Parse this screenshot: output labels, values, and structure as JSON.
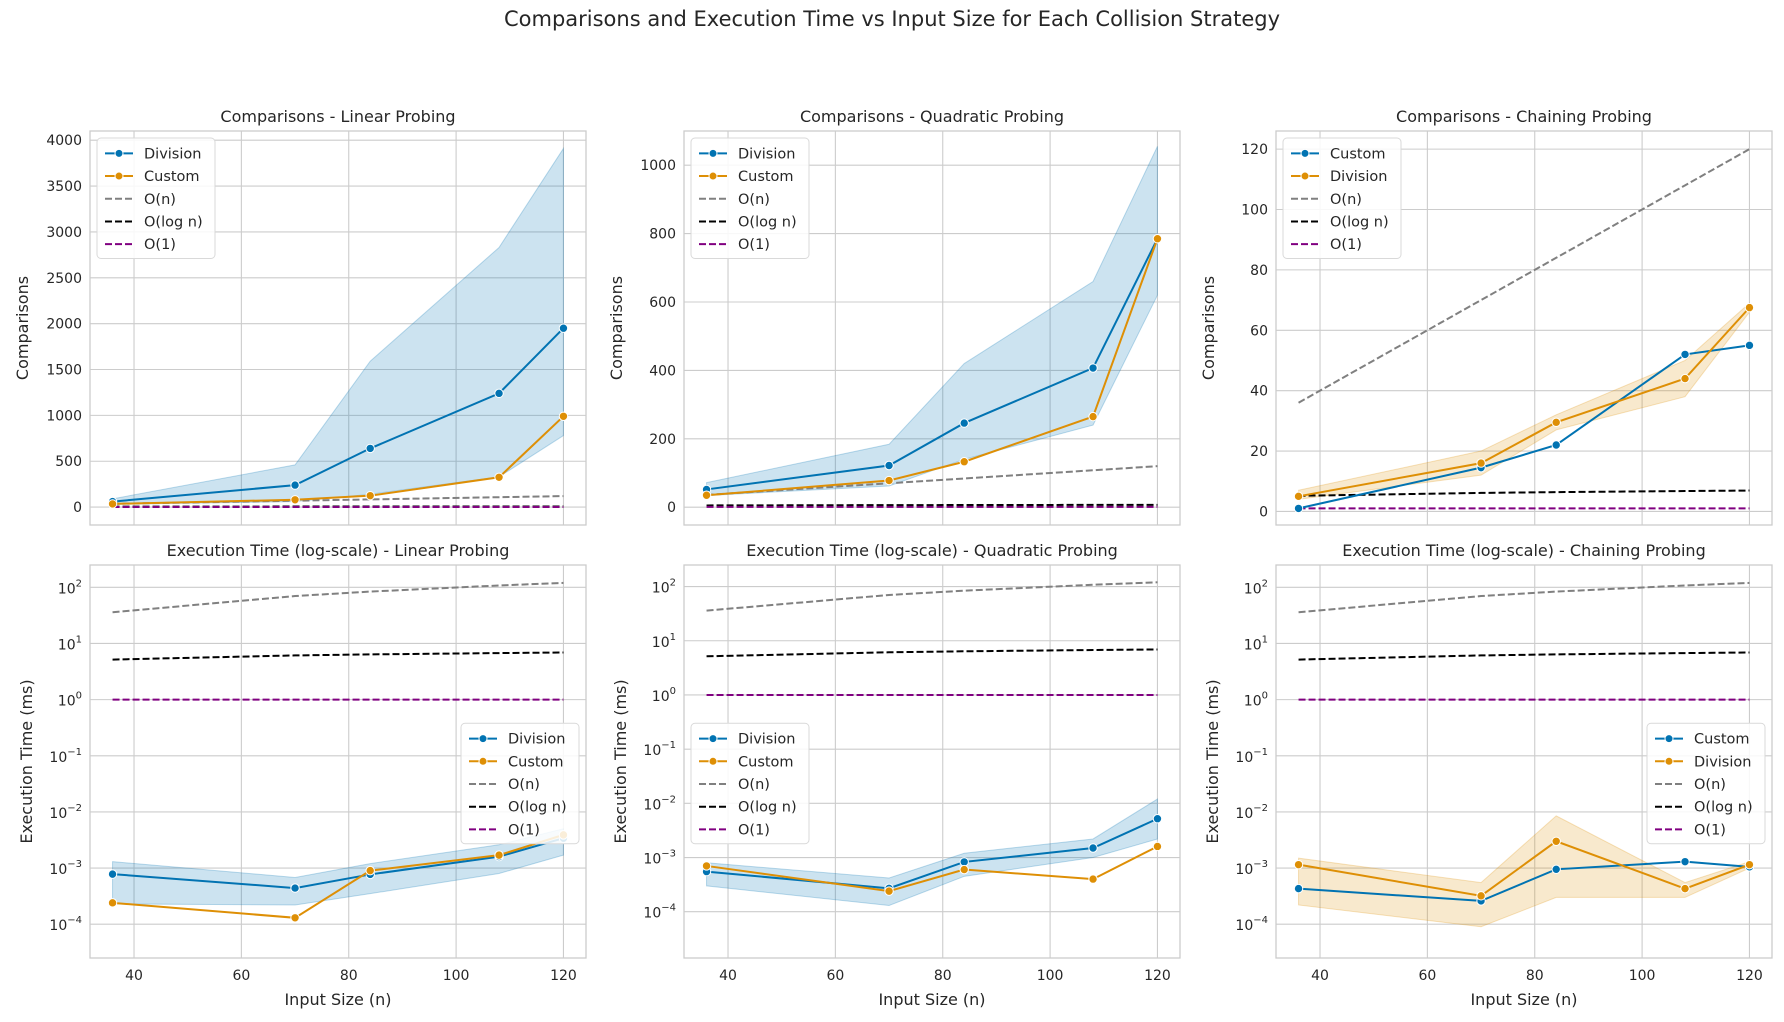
{
  "figure": {
    "suptitle": "Comparisons and Execution Time vs Input Size for Each Collision Strategy"
  },
  "colors": {
    "blue": "#0173b2",
    "orange": "#de8f05",
    "gray": "#808080",
    "black": "#000000",
    "purple": "#800080"
  },
  "chart_data": [
    {
      "id": "cmp-linear",
      "type": "line",
      "title": "Comparisons - Linear Probing",
      "xlabel": "",
      "ylabel": "Comparisons",
      "xlim": [
        31.8,
        124.2
      ],
      "ylim": [
        -195,
        4100
      ],
      "xticks": [
        40,
        60,
        80,
        100,
        120
      ],
      "show_xtick_labels": false,
      "yticks": [
        0,
        500,
        1000,
        1500,
        2000,
        2500,
        3000,
        3500,
        4000
      ],
      "ytick_labels": [
        "0",
        "500",
        "1000",
        "1500",
        "2000",
        "2500",
        "3000",
        "3500",
        "4000"
      ],
      "yscale": "linear",
      "legend_loc": "upper-left",
      "grid": true,
      "x": [
        36,
        70,
        84,
        108,
        120
      ],
      "series": [
        {
          "name": "Division",
          "color": "blue",
          "marker": true,
          "y": [
            60,
            240,
            640,
            1240,
            1950
          ],
          "ci_low": [
            30,
            60,
            140,
            330,
            780
          ],
          "ci_high": [
            90,
            460,
            1590,
            2830,
            3910
          ]
        },
        {
          "name": "Custom",
          "color": "orange",
          "marker": true,
          "y": [
            35,
            80,
            125,
            325,
            990
          ]
        },
        {
          "name": "O(n)",
          "color": "gray",
          "dash": true,
          "y": [
            36,
            70,
            84,
            108,
            120
          ]
        },
        {
          "name": "O(log n)",
          "color": "black",
          "dash": true,
          "y": [
            5.17,
            6.13,
            6.39,
            6.75,
            6.91
          ]
        },
        {
          "name": "O(1)",
          "color": "purple",
          "dash": true,
          "y": [
            1,
            1,
            1,
            1,
            1
          ]
        }
      ]
    },
    {
      "id": "cmp-quadratic",
      "type": "line",
      "title": "Comparisons - Quadratic Probing",
      "xlabel": "",
      "ylabel": "Comparisons",
      "xlim": [
        31.8,
        124.2
      ],
      "ylim": [
        -52,
        1100
      ],
      "xticks": [
        40,
        60,
        80,
        100,
        120
      ],
      "show_xtick_labels": false,
      "yticks": [
        0,
        200,
        400,
        600,
        800,
        1000
      ],
      "ytick_labels": [
        "0",
        "200",
        "400",
        "600",
        "800",
        "1000"
      ],
      "yscale": "linear",
      "legend_loc": "upper-left",
      "grid": true,
      "x": [
        36,
        70,
        84,
        108,
        120
      ],
      "series": [
        {
          "name": "Division",
          "color": "blue",
          "marker": true,
          "y": [
            52,
            122,
            246,
            407,
            785
          ],
          "ci_low": [
            34,
            62,
            140,
            240,
            620
          ],
          "ci_high": [
            72,
            184,
            420,
            660,
            1055
          ]
        },
        {
          "name": "Custom",
          "color": "orange",
          "marker": true,
          "y": [
            35,
            78,
            133,
            265,
            785
          ]
        },
        {
          "name": "O(n)",
          "color": "gray",
          "dash": true,
          "y": [
            36,
            70,
            84,
            108,
            120
          ]
        },
        {
          "name": "O(log n)",
          "color": "black",
          "dash": true,
          "y": [
            5.17,
            6.13,
            6.39,
            6.75,
            6.91
          ]
        },
        {
          "name": "O(1)",
          "color": "purple",
          "dash": true,
          "y": [
            1,
            1,
            1,
            1,
            1
          ]
        }
      ]
    },
    {
      "id": "cmp-chaining",
      "type": "line",
      "title": "Comparisons - Chaining Probing",
      "xlabel": "",
      "ylabel": "Comparisons",
      "xlim": [
        31.8,
        124.2
      ],
      "ylim": [
        -4.5,
        126
      ],
      "xticks": [
        40,
        60,
        80,
        100,
        120
      ],
      "show_xtick_labels": false,
      "yticks": [
        0,
        20,
        40,
        60,
        80,
        100,
        120
      ],
      "ytick_labels": [
        "0",
        "20",
        "40",
        "60",
        "80",
        "100",
        "120"
      ],
      "yscale": "linear",
      "legend_loc": "upper-left",
      "grid": true,
      "x": [
        36,
        70,
        84,
        108,
        120
      ],
      "series": [
        {
          "name": "Custom",
          "color": "blue",
          "marker": true,
          "y": [
            1,
            14.5,
            22,
            52,
            55
          ]
        },
        {
          "name": "Division",
          "color": "orange",
          "marker": true,
          "y": [
            5,
            16,
            29.5,
            44,
            67.5
          ],
          "ci_low": [
            4,
            12,
            27,
            38,
            66
          ],
          "ci_high": [
            7,
            20,
            32,
            50,
            69
          ]
        },
        {
          "name": "O(n)",
          "color": "gray",
          "dash": true,
          "y": [
            36,
            70,
            84,
            108,
            120
          ]
        },
        {
          "name": "O(log n)",
          "color": "black",
          "dash": true,
          "y": [
            5.17,
            6.13,
            6.39,
            6.75,
            6.91
          ]
        },
        {
          "name": "O(1)",
          "color": "purple",
          "dash": true,
          "y": [
            1,
            1,
            1,
            1,
            1
          ]
        }
      ]
    },
    {
      "id": "time-linear",
      "type": "line",
      "title": "Execution Time (log-scale) - Linear Probing",
      "xlabel": "Input Size (n)",
      "ylabel": "Execution Time (ms)",
      "xlim": [
        31.8,
        124.2
      ],
      "ylim": [
        2.5e-05,
        250
      ],
      "xticks": [
        40,
        60,
        80,
        100,
        120
      ],
      "show_xtick_labels": true,
      "yticks": [
        0.0001,
        0.001,
        0.01,
        0.1,
        1,
        10,
        100
      ],
      "ytick_exponents": [
        "-4",
        "-3",
        "-2",
        "-1",
        "0",
        "1",
        "2"
      ],
      "yscale": "log",
      "legend_loc": "center-right",
      "grid": true,
      "x": [
        36,
        70,
        84,
        108,
        120
      ],
      "series": [
        {
          "name": "Division",
          "color": "blue",
          "marker": true,
          "y": [
            0.00078,
            0.00044,
            0.00077,
            0.0016,
            0.0034
          ],
          "ci_low": [
            0.00023,
            0.00022,
            0.00035,
            0.0008,
            0.0017
          ],
          "ci_high": [
            0.0013,
            0.00068,
            0.0012,
            0.0026,
            0.005
          ]
        },
        {
          "name": "Custom",
          "color": "orange",
          "marker": true,
          "y": [
            0.00024,
            0.00013,
            0.0009,
            0.0017,
            0.0039
          ]
        },
        {
          "name": "O(n)",
          "color": "gray",
          "dash": true,
          "y": [
            36,
            70,
            84,
            108,
            120
          ]
        },
        {
          "name": "O(log n)",
          "color": "black",
          "dash": true,
          "y": [
            5.17,
            6.13,
            6.39,
            6.75,
            6.91
          ]
        },
        {
          "name": "O(1)",
          "color": "purple",
          "dash": true,
          "y": [
            1,
            1,
            1,
            1,
            1
          ]
        }
      ]
    },
    {
      "id": "time-quadratic",
      "type": "line",
      "title": "Execution Time (log-scale) - Quadratic Probing",
      "xlabel": "Input Size (n)",
      "ylabel": "Execution Time (ms)",
      "xlim": [
        31.8,
        124.2
      ],
      "ylim": [
        1.4e-05,
        250
      ],
      "xticks": [
        40,
        60,
        80,
        100,
        120
      ],
      "show_xtick_labels": true,
      "yticks": [
        0.0001,
        0.001,
        0.01,
        0.1,
        1,
        10,
        100
      ],
      "ytick_exponents": [
        "-4",
        "-3",
        "-2",
        "-1",
        "0",
        "1",
        "2"
      ],
      "yscale": "log",
      "legend_loc": "center-left",
      "grid": true,
      "x": [
        36,
        70,
        84,
        108,
        120
      ],
      "series": [
        {
          "name": "Division",
          "color": "blue",
          "marker": true,
          "y": [
            0.00055,
            0.00027,
            0.00083,
            0.0015,
            0.0052
          ],
          "ci_low": [
            0.0003,
            0.00013,
            0.00045,
            0.001,
            0.0022
          ],
          "ci_high": [
            0.0008,
            0.00042,
            0.0012,
            0.0022,
            0.012
          ]
        },
        {
          "name": "Custom",
          "color": "orange",
          "marker": true,
          "y": [
            0.0007,
            0.00024,
            0.0006,
            0.0004,
            0.0016
          ]
        },
        {
          "name": "O(n)",
          "color": "gray",
          "dash": true,
          "y": [
            36,
            70,
            84,
            108,
            120
          ]
        },
        {
          "name": "O(log n)",
          "color": "black",
          "dash": true,
          "y": [
            5.17,
            6.13,
            6.39,
            6.75,
            6.91
          ]
        },
        {
          "name": "O(1)",
          "color": "purple",
          "dash": true,
          "y": [
            1,
            1,
            1,
            1,
            1
          ]
        }
      ]
    },
    {
      "id": "time-chaining",
      "type": "line",
      "title": "Execution Time (log-scale) - Chaining Probing",
      "xlabel": "Input Size (n)",
      "ylabel": "Execution Time (ms)",
      "xlim": [
        31.8,
        124.2
      ],
      "ylim": [
        2.5e-05,
        250
      ],
      "xticks": [
        40,
        60,
        80,
        100,
        120
      ],
      "show_xtick_labels": true,
      "yticks": [
        0.0001,
        0.001,
        0.01,
        0.1,
        1,
        10,
        100
      ],
      "ytick_exponents": [
        "-4",
        "-3",
        "-2",
        "-1",
        "0",
        "1",
        "2"
      ],
      "yscale": "log",
      "legend_loc": "center-right",
      "grid": true,
      "x": [
        36,
        70,
        84,
        108,
        120
      ],
      "series": [
        {
          "name": "Custom",
          "color": "blue",
          "marker": true,
          "y": [
            0.00043,
            0.00026,
            0.00095,
            0.0013,
            0.00105
          ]
        },
        {
          "name": "Division",
          "color": "orange",
          "marker": true,
          "y": [
            0.00115,
            0.00032,
            0.003,
            0.00043,
            0.00115
          ],
          "ci_low": [
            0.00022,
            9e-05,
            0.0003,
            0.0003,
            0.001
          ],
          "ci_high": [
            0.0015,
            0.00055,
            0.0085,
            0.00055,
            0.0013
          ]
        },
        {
          "name": "O(n)",
          "color": "gray",
          "dash": true,
          "y": [
            36,
            70,
            84,
            108,
            120
          ]
        },
        {
          "name": "O(log n)",
          "color": "black",
          "dash": true,
          "y": [
            5.17,
            6.13,
            6.39,
            6.75,
            6.91
          ]
        },
        {
          "name": "O(1)",
          "color": "purple",
          "dash": true,
          "y": [
            1,
            1,
            1,
            1,
            1
          ]
        }
      ]
    }
  ]
}
